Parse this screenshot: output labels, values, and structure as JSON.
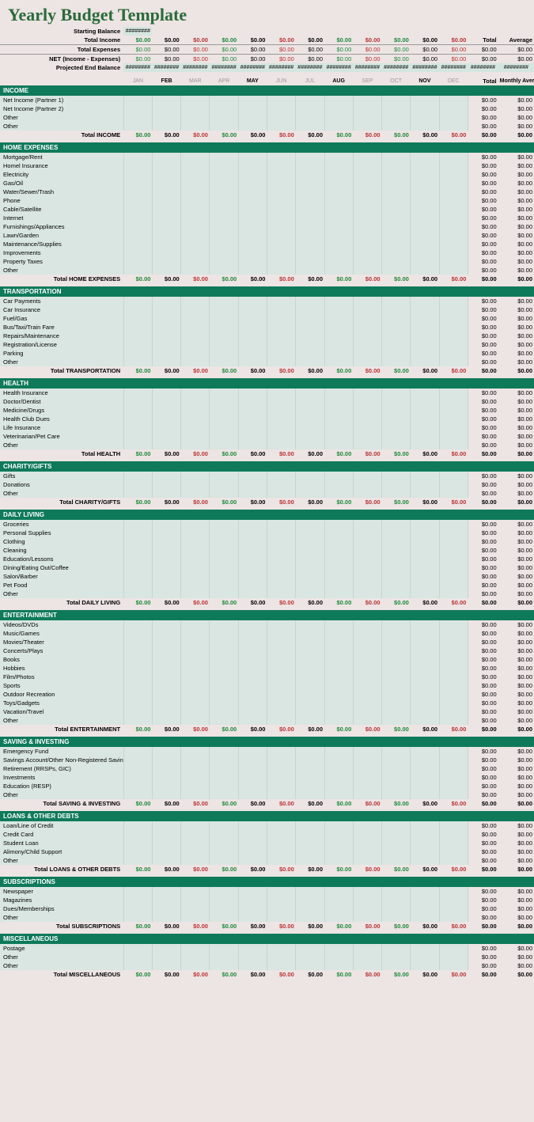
{
  "title": "Yearly Budget Template",
  "colors": {
    "bg": "#ede4e4",
    "section_hdr": "#0f7a5a",
    "item_bg": "#d9e6e2",
    "title": "#2b6b3a",
    "green": "#1a8a3a",
    "red": "#b83232"
  },
  "fonts": {
    "title_family": "Georgia",
    "body_family": "Arial",
    "title_size": 22,
    "body_size": 8
  },
  "summary": {
    "starting_balance": {
      "label": "Starting Balance",
      "value": "########"
    },
    "total_income": {
      "label": "Total Income"
    },
    "total_expenses": {
      "label": "Total Expenses"
    },
    "net": {
      "label": "NET (Income - Expenses)"
    },
    "projected": {
      "label": "Projected End Balance"
    },
    "totals_header": [
      "Total",
      "Average"
    ]
  },
  "months": [
    {
      "label": "JAN",
      "light": true
    },
    {
      "label": "FEB",
      "light": false
    },
    {
      "label": "MAR",
      "light": true
    },
    {
      "label": "APR",
      "light": true
    },
    {
      "label": "MAY",
      "light": false
    },
    {
      "label": "JUN",
      "light": true
    },
    {
      "label": "JUL",
      "light": true
    },
    {
      "label": "AUG",
      "light": false
    },
    {
      "label": "SEP",
      "light": true
    },
    {
      "label": "OCT",
      "light": true
    },
    {
      "label": "NOV",
      "light": false
    },
    {
      "label": "DEC",
      "light": true
    }
  ],
  "month_value_colors": [
    "green",
    "black",
    "red",
    "green",
    "black",
    "red",
    "black",
    "green",
    "red",
    "green",
    "black",
    "red"
  ],
  "totals_cols": {
    "total": "Total",
    "monthly_avg": "Monthly Average"
  },
  "zero": "$0.00",
  "hash": "########",
  "sections": [
    {
      "name": "INCOME",
      "items": [
        "Net Income (Partner 1)",
        "Net Income (Partner 2)",
        "Other",
        "Other"
      ],
      "total_label": "Total INCOME"
    },
    {
      "name": "HOME EXPENSES",
      "items": [
        "Mortgage/Rent",
        "Homel Insurance",
        "Electricity",
        "Gas/Oil",
        "Water/Sewer/Trash",
        "Phone",
        "Cable/Satellite",
        "Internet",
        "Furnishings/Appliances",
        "Lawn/Garden",
        "Maintenance/Supplies",
        "Improvements",
        "Property Taxes",
        "Other"
      ],
      "total_label": "Total HOME EXPENSES"
    },
    {
      "name": "TRANSPORTATION",
      "items": [
        "Car Payments",
        "Car Insurance",
        "Fuel/Gas",
        "Bus/Taxi/Train Fare",
        "Repairs/Maintenance",
        "Registration/License",
        "Parking",
        "Other"
      ],
      "total_label": "Total TRANSPORTATION"
    },
    {
      "name": "HEALTH",
      "items": [
        "Health Insurance",
        "Doctor/Dentist",
        "Medicine/Drugs",
        "Health Club Dues",
        "Life Insurance",
        "Veterinarian/Pet Care",
        "Other"
      ],
      "total_label": "Total HEALTH"
    },
    {
      "name": "CHARITY/GIFTS",
      "items": [
        "Gifts",
        "Donations",
        "Other"
      ],
      "total_label": "Total CHARITY/GIFTS"
    },
    {
      "name": "DAILY LIVING",
      "items": [
        "Groceries",
        "Personal Supplies",
        "Clothing",
        "Cleaning",
        "Education/Lessons",
        "Dining/Eating Out/Coffee",
        "Salon/Barber",
        "Pet Food",
        "Other"
      ],
      "total_label": "Total DAILY LIVING"
    },
    {
      "name": "ENTERTAINMENT",
      "items": [
        "Videos/DVDs",
        "Music/Games",
        "Movies/Theater",
        "Concerts/Plays",
        "Books",
        "Hobbies",
        "Film/Photos",
        "Sports",
        "Outdoor Recreation",
        "Toys/Gadgets",
        "Vacation/Travel",
        "Other"
      ],
      "total_label": "Total ENTERTAINMENT"
    },
    {
      "name": "SAVING & INVESTING",
      "items": [
        "Emergency Fund",
        "Savings Account/Other Non-Registered Savings",
        "Retirement (RRSPs, GIC)",
        "Investments",
        "Education (RESP)",
        "Other"
      ],
      "total_label": "Total SAVING & INVESTING"
    },
    {
      "name": "LOANS & OTHER DEBTS",
      "items": [
        "Loan/Line of Credit",
        "Credit Card",
        "Student Loan",
        "Alimony/Child Support",
        "Other"
      ],
      "total_label": "Total LOANS & OTHER DEBTS"
    },
    {
      "name": "SUBSCRIPTIONS",
      "items": [
        "Newspaper",
        "Magazines",
        "Dues/Memberships",
        "Other"
      ],
      "total_label": "Total SUBSCRIPTIONS"
    },
    {
      "name": "MISCELLANEOUS",
      "items": [
        "Postage",
        "Other",
        "Other"
      ],
      "total_label": "Total MISCELLANEOUS"
    }
  ]
}
